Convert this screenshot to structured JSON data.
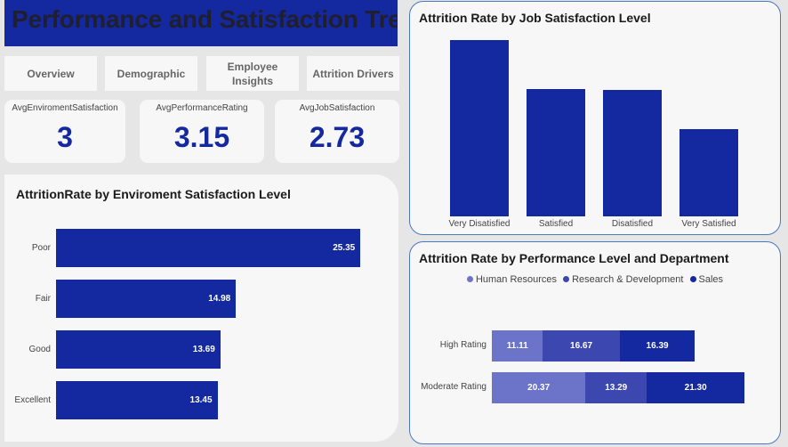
{
  "header": {
    "title": "Performance and Satisfaction Trend"
  },
  "nav": {
    "overview": "Overview",
    "demographic": "Demographic",
    "employee_insights_line1": "Employee",
    "employee_insights_line2": "Insights",
    "attrition_drivers": "Attrition Drivers"
  },
  "kpis": {
    "env": {
      "label": "AvgEnviromentSatisfaction",
      "value": "3"
    },
    "perf": {
      "label": "AvgPerformanceRating",
      "value": "3.15"
    },
    "job": {
      "label": "AvgJobSatisfaction",
      "value": "2.73"
    }
  },
  "colors": {
    "bar": "#1428a0",
    "human_resources": "#6b74c8",
    "research_development": "#3d47b0",
    "sales": "#1428a0"
  },
  "chart_data": [
    {
      "type": "bar",
      "orientation": "horizontal",
      "title": "AttritionRate by Enviroment Satisfaction Level",
      "categories": [
        "Poor",
        "Fair",
        "Good",
        "Excellent"
      ],
      "values": [
        25.35,
        14.98,
        13.69,
        13.45
      ],
      "value_labels": [
        "25.35",
        "14.98",
        "13.69",
        "13.45"
      ],
      "xlim": [
        0,
        28
      ]
    },
    {
      "type": "bar",
      "orientation": "vertical",
      "title": "Attrition Rate by Job Satisfaction Level",
      "categories": [
        "Very Disatisfied",
        "Satisfied",
        "Disatisfied",
        "Very Satisfied"
      ],
      "values": [
        22.85,
        16.45,
        16.44,
        11.33
      ],
      "ylim": [
        0,
        24
      ]
    },
    {
      "type": "bar",
      "orientation": "horizontal",
      "stacked": true,
      "title": "Attrition Rate by Performance Level and Department",
      "legend": "top",
      "categories": [
        "High Rating",
        "Moderate Rating"
      ],
      "series": [
        {
          "name": "Human Resources",
          "values": [
            11.11,
            20.37
          ],
          "labels": [
            "11.11",
            "20.37"
          ]
        },
        {
          "name": "Research & Development",
          "values": [
            16.67,
            13.29
          ],
          "labels": [
            "16.67",
            "13.29"
          ]
        },
        {
          "name": "Sales",
          "values": [
            16.39,
            21.3
          ],
          "labels": [
            "16.39",
            "21.30"
          ]
        }
      ],
      "xlim": [
        0,
        58
      ]
    }
  ]
}
